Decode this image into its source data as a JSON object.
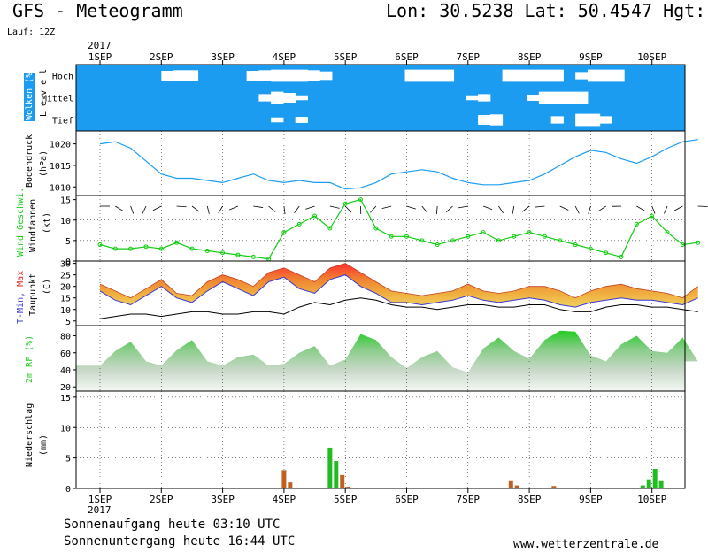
{
  "header": {
    "title": "GFS - Meteogramm",
    "location": "Lon: 30.5238 Lat: 50.4547 Hgt: 1",
    "run": "Lauf: 12Z"
  },
  "footer": {
    "sunrise": "Sonnenaufgang heute 03:10 UTC",
    "sunset": "Sonnenuntergang heute 16:44 UTC",
    "site": "www.wetterzentrale.de"
  },
  "time_axis": {
    "year": "2017",
    "labels": [
      "1SEP",
      "2SEP",
      "3SEP",
      "4SEP",
      "5SEP",
      "6SEP",
      "7SEP",
      "8SEP",
      "9SEP",
      "10SEP"
    ]
  },
  "colors": {
    "cloud_sky": "#1c9cf0",
    "pressure": "#1c9cf0",
    "wind": "#11cc11",
    "temp_min": "#3a3ad8",
    "temp_max": "#f02020",
    "dew": "#000000",
    "rh": "#22cc22",
    "precip_green": "#22bb22",
    "precip_brown": "#c06020"
  },
  "chart_data": [
    {
      "type": "heatmap",
      "ylabel": "Wolken (%)",
      "ylabel2": "L e v e l",
      "levels": [
        "Hoch",
        "Mittel",
        "Tief"
      ],
      "cloud_fraction": [
        [
          1,
          1,
          1,
          1,
          1,
          1,
          1,
          0.2,
          0.1,
          0.1,
          1,
          1,
          1,
          1,
          0.2,
          0.1,
          0,
          0,
          0,
          0.1,
          0.3,
          1,
          1,
          1,
          1,
          1,
          1,
          0,
          0,
          0,
          0,
          1,
          1,
          1,
          1,
          0,
          0,
          0,
          0,
          0,
          1,
          0.4,
          0,
          0,
          0,
          1,
          1,
          1,
          1,
          1
        ],
        [
          1,
          1,
          1,
          1,
          1,
          1,
          1,
          1,
          1,
          1,
          1,
          1,
          1,
          1,
          1,
          0.4,
          0,
          0.2,
          0.6,
          1,
          1,
          1,
          1,
          1,
          1,
          1,
          1,
          1,
          1,
          1,
          1,
          1,
          0.6,
          0.4,
          1,
          1,
          1,
          0.5,
          0,
          0,
          0,
          0,
          1,
          1,
          1,
          1,
          1,
          1,
          1,
          1
        ],
        [
          1,
          1,
          1,
          1,
          1,
          1,
          1,
          1,
          1,
          1,
          1,
          1,
          1,
          1,
          1,
          1,
          0.6,
          1,
          0.5,
          1,
          1,
          1,
          1,
          1,
          1,
          1,
          1,
          1,
          1,
          1,
          1,
          1,
          1,
          0.2,
          0.1,
          1,
          1,
          1,
          1,
          0.4,
          1,
          0,
          0,
          0.4,
          1,
          1,
          1,
          1,
          1,
          1
        ]
      ]
    },
    {
      "type": "line",
      "ylabel": "Bodendruck",
      "unit": "(hPa)",
      "yticks": [
        1010,
        1015,
        1020
      ],
      "ylim": [
        1008,
        1023
      ],
      "x_days": [
        0,
        0.25,
        0.5,
        0.75,
        1,
        1.25,
        1.5,
        1.75,
        2,
        2.25,
        2.5,
        2.75,
        3,
        3.25,
        3.5,
        3.75,
        4,
        4.25,
        4.5,
        4.75,
        5,
        5.25,
        5.5,
        5.75,
        6,
        6.25,
        6.5,
        6.75,
        7,
        7.25,
        7.5,
        7.75,
        8,
        8.25,
        8.5,
        8.75,
        9,
        9.25,
        9.5,
        9.75
      ],
      "values": [
        1020,
        1020.5,
        1019,
        1016,
        1013,
        1012,
        1012,
        1011.5,
        1011,
        1012,
        1013,
        1011.5,
        1011,
        1011.5,
        1011,
        1011,
        1009.5,
        1009.8,
        1011,
        1013,
        1013.5,
        1014,
        1013.5,
        1012,
        1011,
        1010.5,
        1010.5,
        1011,
        1011.5,
        1013,
        1015,
        1017,
        1018.5,
        1018,
        1016.5,
        1015.5,
        1017,
        1019,
        1020.5,
        1021
      ]
    },
    {
      "type": "line",
      "ylabel": "Wind Geschwi.",
      "ylabel2": "Windfahnen",
      "unit": "(kt)",
      "yticks": [
        0,
        5,
        10,
        15
      ],
      "ylim": [
        0,
        16
      ],
      "x_days": [
        0,
        0.25,
        0.5,
        0.75,
        1,
        1.25,
        1.5,
        1.75,
        2,
        2.25,
        2.5,
        2.75,
        3,
        3.25,
        3.5,
        3.75,
        4,
        4.25,
        4.5,
        4.75,
        5,
        5.25,
        5.5,
        5.75,
        6,
        6.25,
        6.5,
        6.75,
        7,
        7.25,
        7.5,
        7.75,
        8,
        8.25,
        8.5,
        8.75,
        9,
        9.25,
        9.5,
        9.75
      ],
      "values": [
        4,
        3,
        3,
        3.5,
        3,
        4.5,
        3,
        2.5,
        2,
        1.5,
        1,
        0.5,
        7,
        9,
        11,
        8,
        14,
        15,
        8,
        6,
        6,
        5,
        4,
        5,
        6,
        7,
        5,
        6,
        7,
        6,
        5,
        4,
        3,
        2,
        1,
        9,
        11,
        7,
        4,
        4.5
      ]
    },
    {
      "type": "area",
      "ylabel": "T-Min, Max",
      "ylabel2": "Taupunkt",
      "unit": "(C)",
      "series_labels": [
        "T-Min",
        "Max"
      ],
      "yticks": [
        5,
        10,
        15,
        20,
        25,
        30
      ],
      "ylim": [
        3,
        31
      ],
      "x_days": [
        0,
        0.25,
        0.5,
        0.75,
        1,
        1.25,
        1.5,
        1.75,
        2,
        2.25,
        2.5,
        2.75,
        3,
        3.25,
        3.5,
        3.75,
        4,
        4.25,
        4.5,
        4.75,
        5,
        5.25,
        5.5,
        5.75,
        6,
        6.25,
        6.5,
        6.75,
        7,
        7.25,
        7.5,
        7.75,
        8,
        8.25,
        8.5,
        8.75,
        9,
        9.25,
        9.5,
        9.75
      ],
      "tmin": [
        18,
        14,
        12,
        16,
        20,
        15,
        13,
        18,
        22,
        19,
        16,
        22,
        24,
        19,
        17,
        23,
        25,
        20,
        17,
        13,
        13,
        12,
        13,
        14,
        16,
        14,
        13,
        14,
        15,
        14,
        12,
        11,
        13,
        14,
        15,
        14,
        14,
        13,
        12,
        15
      ],
      "tmax": [
        21,
        18,
        15,
        19,
        23,
        17,
        16,
        22,
        25,
        23,
        20,
        26,
        28,
        25,
        22,
        28,
        30,
        26,
        22,
        18,
        17,
        16,
        17,
        18,
        21,
        18,
        17,
        18,
        20,
        20,
        18,
        15,
        18,
        20,
        21,
        19,
        18,
        17,
        15,
        20
      ],
      "dew": [
        6,
        7,
        8,
        8,
        7,
        8,
        9,
        9,
        8,
        8,
        9,
        9,
        8,
        11,
        13,
        12,
        14,
        15,
        14,
        12,
        11,
        11,
        10,
        11,
        12,
        12,
        11,
        11,
        12,
        12,
        10,
        9,
        9,
        11,
        12,
        12,
        11,
        11,
        10,
        9
      ]
    },
    {
      "type": "area",
      "ylabel": "2m RF (%)",
      "yticks": [
        20,
        40,
        60,
        80
      ],
      "ylim": [
        15,
        92
      ],
      "x_days": [
        0,
        0.25,
        0.5,
        0.75,
        1,
        1.25,
        1.5,
        1.75,
        2,
        2.25,
        2.5,
        2.75,
        3,
        3.25,
        3.5,
        3.75,
        4,
        4.25,
        4.5,
        4.75,
        5,
        5.25,
        5.5,
        5.75,
        6,
        6.25,
        6.5,
        6.75,
        7,
        7.25,
        7.5,
        7.75,
        8,
        8.25,
        8.5,
        8.75,
        9,
        9.25,
        9.5,
        9.75
      ],
      "values": [
        45,
        62,
        73,
        50,
        45,
        63,
        75,
        50,
        45,
        55,
        58,
        45,
        47,
        60,
        68,
        45,
        52,
        82,
        75,
        55,
        42,
        55,
        62,
        43,
        37,
        65,
        78,
        62,
        53,
        75,
        86,
        85,
        57,
        50,
        70,
        80,
        62,
        60,
        78,
        50
      ]
    },
    {
      "type": "bar",
      "ylabel": "Niederschlag",
      "unit": "(mm)",
      "yticks": [
        0,
        5,
        10,
        15
      ],
      "ylim": [
        0,
        16
      ],
      "x_days": [
        3,
        3.1,
        3.75,
        3.85,
        3.95,
        4.05,
        6.7,
        6.8,
        7.4,
        8.85,
        8.95,
        9.05,
        9.15
      ],
      "values": [
        3,
        1,
        6.7,
        4.5,
        2.2,
        0.3,
        1.2,
        0.5,
        0.4,
        0.5,
        1.5,
        3.2,
        1.2
      ],
      "colors": [
        "brown",
        "brown",
        "green",
        "green",
        "brown",
        "brown",
        "brown",
        "brown",
        "brown",
        "green",
        "green",
        "green",
        "green"
      ]
    }
  ]
}
